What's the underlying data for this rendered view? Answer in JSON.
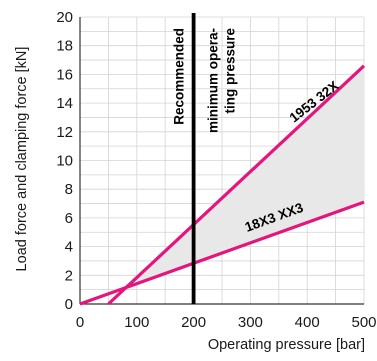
{
  "chart_data": {
    "type": "line",
    "title": "",
    "xlabel": "Operating pressure [bar]",
    "ylabel": "Load force and clamping force [kN]",
    "xlim": [
      0,
      500
    ],
    "ylim": [
      0,
      20
    ],
    "x_ticks": [
      0,
      100,
      200,
      300,
      400,
      500
    ],
    "y_ticks": [
      0,
      2,
      4,
      6,
      8,
      10,
      12,
      14,
      16,
      18,
      20
    ],
    "grid": true,
    "series": [
      {
        "name": "1953 32X",
        "color": "#e4157c",
        "x": [
          50,
          500
        ],
        "y": [
          0,
          16.6
        ]
      },
      {
        "name": "18X3 XX3",
        "color": "#e4157c",
        "x": [
          0,
          500
        ],
        "y": [
          0,
          7.1
        ]
      }
    ],
    "shaded_region": {
      "between": [
        "1953 32X",
        "18X3 XX3"
      ],
      "from_x": 75,
      "to_x": 500,
      "color": "#e8e8e8"
    },
    "reference_line": {
      "x": 200,
      "color": "#000000",
      "label_left": [
        "Recommended"
      ],
      "label_right": [
        "minimum opera-",
        "ting pressure"
      ]
    }
  }
}
